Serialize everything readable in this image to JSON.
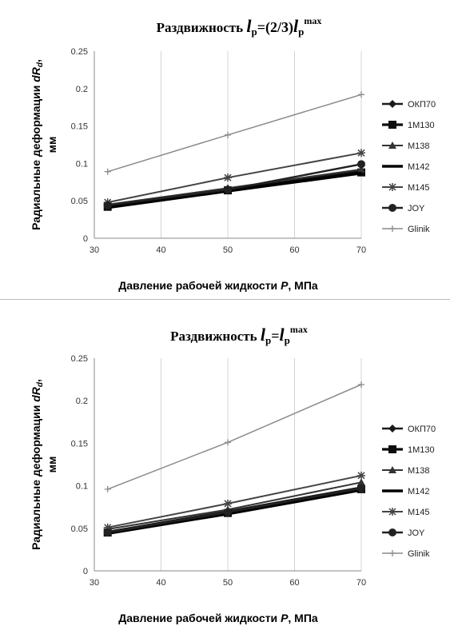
{
  "chart_data": [
    {
      "type": "line",
      "title": "Раздвижность lр=(2/3)lрmax",
      "title_parts": {
        "prefix": "Раздвижность ",
        "l1": "l",
        "sub1": "р",
        "middle": "=(2/3)",
        "l2": "l",
        "sub2": "р",
        "sup2": "max"
      },
      "xlabel": "Давление рабочей жидкости P, МПа",
      "xlabel_parts": {
        "pre": "Давление рабочей жидкости ",
        "var": "P",
        "post": ", МПа"
      },
      "ylabel": "Радиальные деформации dRd, мм",
      "ylabel_parts": {
        "pre": "Радиальные деформации ",
        "var": "dR",
        "sub": "d",
        "post": ",",
        "line2": "мм"
      },
      "x": [
        32,
        50,
        70
      ],
      "xlim": [
        30,
        70
      ],
      "ylim": [
        0,
        0.25
      ],
      "xticks": [
        "30",
        "40",
        "50",
        "60",
        "70"
      ],
      "yticks": [
        "0",
        "0.05",
        "0.1",
        "0.15",
        "0.2",
        "0.25"
      ],
      "grid": "vertical",
      "legend_position": "right",
      "series": [
        {
          "name": "ОКП70",
          "values": [
            0.043,
            0.066,
            0.09
          ],
          "color": "#1a1a1a",
          "marker": "diamond",
          "width": 2.6
        },
        {
          "name": "1M130",
          "values": [
            0.042,
            0.064,
            0.088
          ],
          "color": "#0d0d0d",
          "marker": "square",
          "width": 3.2
        },
        {
          "name": "M138",
          "values": [
            0.045,
            0.067,
            0.092
          ],
          "color": "#333333",
          "marker": "triangle",
          "width": 2
        },
        {
          "name": "M142",
          "values": [
            0.041,
            0.063,
            0.087
          ],
          "color": "#000000",
          "marker": "none",
          "width": 3.6
        },
        {
          "name": "M145",
          "values": [
            0.048,
            0.081,
            0.114
          ],
          "color": "#444444",
          "marker": "star",
          "width": 2
        },
        {
          "name": "JOY",
          "values": [
            0.044,
            0.065,
            0.099
          ],
          "color": "#222222",
          "marker": "circle",
          "width": 2.4
        },
        {
          "name": "Glinik",
          "values": [
            0.089,
            0.138,
            0.192
          ],
          "color": "#8a8a8a",
          "marker": "plus",
          "width": 1.5
        }
      ]
    },
    {
      "type": "line",
      "title": "Раздвижность lр=lрmax",
      "title_parts": {
        "prefix": "Раздвижность ",
        "l1": "l",
        "sub1": "р",
        "middle": "=",
        "l2": "l",
        "sub2": "р",
        "sup2": "max"
      },
      "xlabel": "Давление рабочей жидкости P, МПа",
      "xlabel_parts": {
        "pre": "Давление рабочей жидкости ",
        "var": "P",
        "post": ", МПа"
      },
      "ylabel": "Радиальные деформации dRd, мм",
      "ylabel_parts": {
        "pre": "Радиальные деформации ",
        "var": "dR",
        "sub": "d",
        "post": ",",
        "line2": "мм"
      },
      "x": [
        32,
        50,
        70
      ],
      "xlim": [
        30,
        70
      ],
      "ylim": [
        0,
        0.25
      ],
      "xticks": [
        "30",
        "40",
        "50",
        "60",
        "70"
      ],
      "yticks": [
        "0",
        "0.05",
        "0.1",
        "0.15",
        "0.2",
        "0.25"
      ],
      "grid": "vertical",
      "legend_position": "right",
      "series": [
        {
          "name": "ОКП70",
          "values": [
            0.046,
            0.07,
            0.098
          ],
          "color": "#1a1a1a",
          "marker": "diamond",
          "width": 2.6
        },
        {
          "name": "1M130",
          "values": [
            0.045,
            0.068,
            0.096
          ],
          "color": "#0d0d0d",
          "marker": "square",
          "width": 3.2
        },
        {
          "name": "M138",
          "values": [
            0.049,
            0.072,
            0.104
          ],
          "color": "#333333",
          "marker": "triangle",
          "width": 2
        },
        {
          "name": "M142",
          "values": [
            0.044,
            0.067,
            0.095
          ],
          "color": "#000000",
          "marker": "none",
          "width": 3.6
        },
        {
          "name": "M145",
          "values": [
            0.051,
            0.079,
            0.112
          ],
          "color": "#444444",
          "marker": "star",
          "width": 2
        },
        {
          "name": "JOY",
          "values": [
            0.045,
            0.069,
            0.097
          ],
          "color": "#222222",
          "marker": "circle",
          "width": 2.4
        },
        {
          "name": "Glinik",
          "values": [
            0.096,
            0.151,
            0.219
          ],
          "color": "#8a8a8a",
          "marker": "plus",
          "width": 1.5
        }
      ]
    }
  ]
}
